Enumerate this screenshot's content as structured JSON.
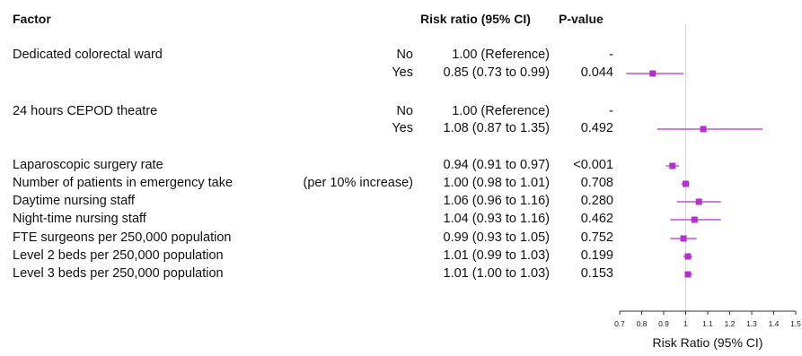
{
  "chart_data": {
    "type": "forest",
    "headers": {
      "factor": "Factor",
      "rr": "Risk ratio (95% CI)",
      "p": "P-value"
    },
    "rows": [
      {
        "factor": "Dedicated colorectal ward",
        "level": "No",
        "rr_text": "1.00 (Reference)",
        "p": "-",
        "est": null,
        "lo": null,
        "hi": null
      },
      {
        "factor": "",
        "level": "Yes",
        "rr_text": "0.85 (0.73 to 0.99)",
        "p": "0.044",
        "est": 0.85,
        "lo": 0.73,
        "hi": 0.99
      },
      {
        "factor": "24 hours CEPOD theatre",
        "level": "No",
        "rr_text": "1.00 (Reference)",
        "p": "-",
        "est": null,
        "lo": null,
        "hi": null
      },
      {
        "factor": "",
        "level": "Yes",
        "rr_text": "1.08 (0.87 to 1.35)",
        "p": "0.492",
        "est": 1.08,
        "lo": 0.87,
        "hi": 1.35
      },
      {
        "factor": "Laparoscopic surgery rate",
        "level": "",
        "rr_text": "0.94 (0.91 to 0.97)",
        "p": "<0.001",
        "est": 0.94,
        "lo": 0.91,
        "hi": 0.97
      },
      {
        "factor": "Number of patients in emergency take",
        "level": "(per 10% increase)",
        "rr_text": "1.00 (0.98 to 1.01)",
        "p": "0.708",
        "est": 1.0,
        "lo": 0.98,
        "hi": 1.01
      },
      {
        "factor": "Daytime nursing staff",
        "level": "",
        "rr_text": "1.06 (0.96 to 1.16)",
        "p": "0.280",
        "est": 1.06,
        "lo": 0.96,
        "hi": 1.16
      },
      {
        "factor": "Night-time nursing staff",
        "level": "",
        "rr_text": "1.04 (0.93 to 1.16)",
        "p": "0.462",
        "est": 1.04,
        "lo": 0.93,
        "hi": 1.16
      },
      {
        "factor": "FTE surgeons per 250,000 population",
        "level": "",
        "rr_text": "0.99 (0.93 to 1.05)",
        "p": "0.752",
        "est": 0.99,
        "lo": 0.93,
        "hi": 1.05
      },
      {
        "factor": "Level 2 beds per 250,000 population",
        "level": "",
        "rr_text": "1.01 (0.99 to 1.03)",
        "p": "0.199",
        "est": 1.01,
        "lo": 0.99,
        "hi": 1.03
      },
      {
        "factor": "Level 3 beds per 250,000 population",
        "level": "",
        "rr_text": "1.01 (1.00 to 1.03)",
        "p": "0.153",
        "est": 1.01,
        "lo": 1.0,
        "hi": 1.03
      }
    ],
    "xlim": [
      0.7,
      1.5
    ],
    "x_ticks": [
      0.7,
      0.8,
      0.9,
      1,
      1.1,
      1.2,
      1.3,
      1.4,
      1.5
    ],
    "reference_line": 1,
    "xlabel": "Risk Ratio (95% CI)",
    "marker_color": "#b133c7"
  }
}
